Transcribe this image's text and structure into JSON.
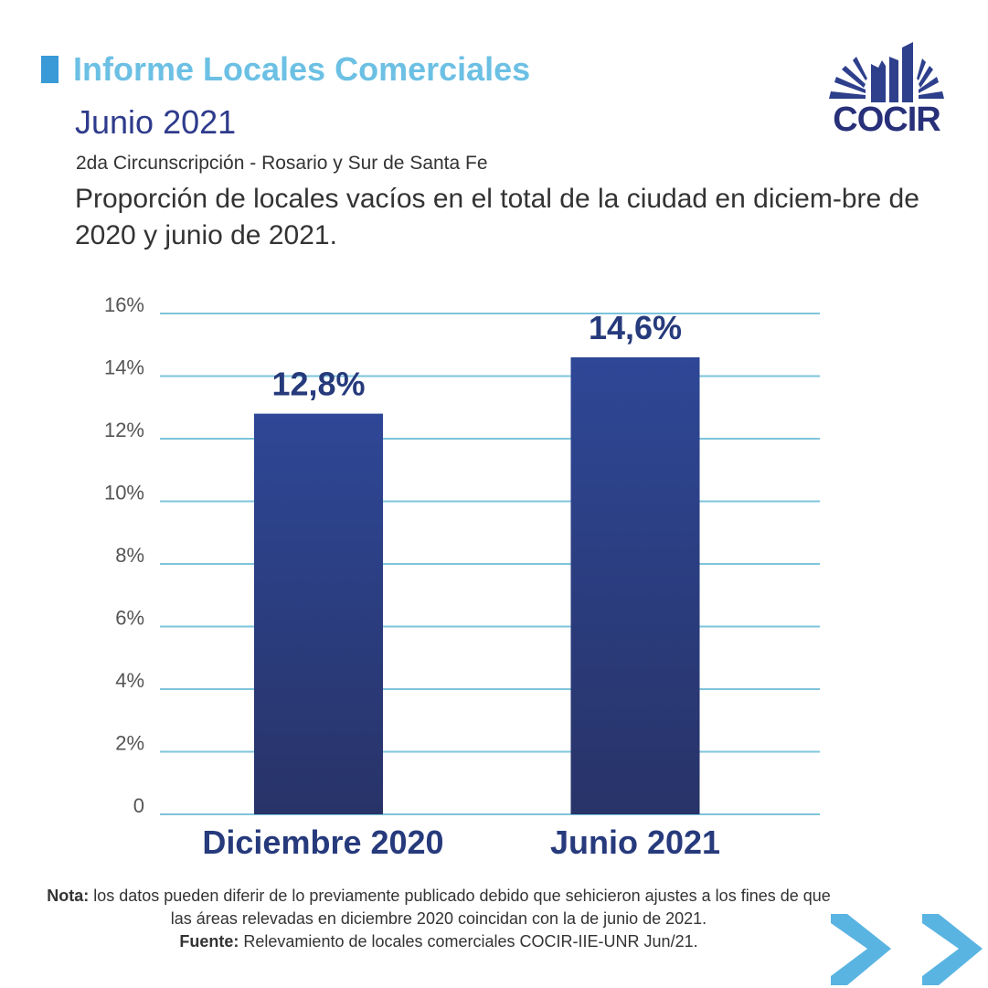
{
  "header": {
    "title": "Informe Locales Comerciales",
    "subtitle": "Junio 2021",
    "region": "2da Circunscripción - Rosario y Sur de Santa Fe",
    "question": "Proporción de locales vacíos en el total de la ciudad en diciem-bre de 2020 y junio de 2021."
  },
  "logo": {
    "text": "COCIR",
    "icon": "cocir-buildings-logo"
  },
  "chart_data": {
    "type": "bar",
    "title": "Proporción de locales vacíos en el total de la ciudad en diciem-bre de 2020 y junio de 2021.",
    "categories": [
      "Diciembre 2020",
      "Junio 2021"
    ],
    "values": [
      12.8,
      14.6
    ],
    "data_labels": [
      "12,8%",
      "14,6%"
    ],
    "xlabel": "",
    "ylabel": "",
    "ylim": [
      0,
      16
    ],
    "yticks": [
      0,
      2,
      4,
      6,
      8,
      10,
      12,
      14,
      16
    ],
    "ytick_labels": [
      "0",
      "2%",
      "4%",
      "6%",
      "8%",
      "10%",
      "12%",
      "14%",
      "16%"
    ],
    "grid": true,
    "legend": "none",
    "colors": {
      "bar_top": "#2e4796",
      "bar_bottom": "#283368",
      "grid": "#7ec4dc",
      "label": "#263a7c",
      "tick": "#555555"
    }
  },
  "footer": {
    "note_label": "Nota:",
    "note_text": "los datos pueden diferir de lo previamente publicado debido que sehicieron ajustes a los fines de que las áreas relevadas en diciembre 2020 coincidan con la de junio de 2021.",
    "source_label": "Fuente:",
    "source_text": "Relevamiento de locales comerciales COCIR-IIE-UNR Jun/21."
  },
  "navigation": {
    "next_icon": "double-chevron-right-icon",
    "color": "#5ab4e2"
  }
}
